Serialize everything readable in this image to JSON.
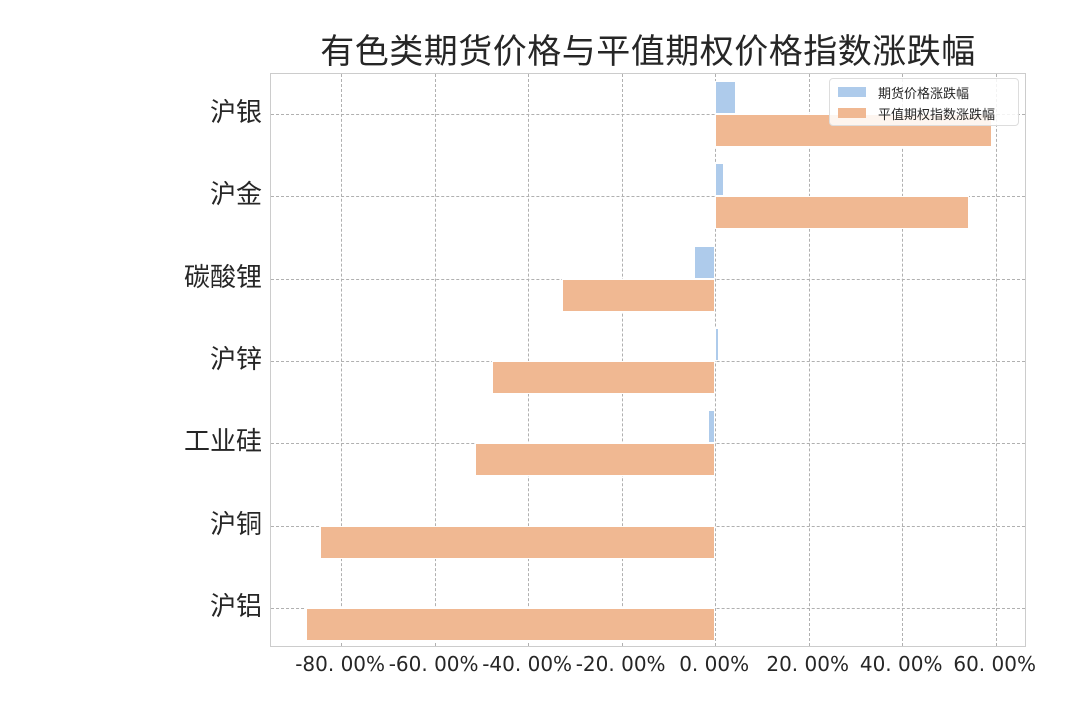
{
  "chart_data": {
    "type": "bar",
    "orientation": "horizontal",
    "title": "有色类期货价格与平值期权价格指数涨跌幅",
    "xlabel": "",
    "ylabel": "",
    "categories": [
      "沪银",
      "沪金",
      "碳酸锂",
      "沪锌",
      "工业硅",
      "沪铜",
      "沪铝"
    ],
    "series": [
      {
        "name": "期货价格涨跌幅",
        "color": "#aecbeb",
        "values": [
          4.5,
          1.9,
          -4.5,
          0.9,
          -1.5,
          -0.5,
          -0.4
        ]
      },
      {
        "name": "平值期权指数涨跌幅",
        "color": "#f0b892",
        "values": [
          59.2,
          54.3,
          -32.7,
          -47.7,
          -51.3,
          -84.5,
          -87.5
        ]
      }
    ],
    "xlim": [
      -95,
      66.7
    ],
    "xticks": [
      -80,
      -60,
      -40,
      -20,
      0,
      20,
      40,
      60
    ],
    "xtick_labels": [
      "-80.00%",
      "-60.00%",
      "-40.00%",
      "-20.00%",
      "0.00%",
      "20.00%",
      "40.00%",
      "60.00%"
    ],
    "grid": true,
    "legend_position": "upper right",
    "unit": "%"
  },
  "title": "有色类期货价格与平值期权价格指数涨跌幅",
  "legend": {
    "items": [
      {
        "label": "期货价格涨跌幅",
        "color": "#aecbeb"
      },
      {
        "label": "平值期权指数涨跌幅",
        "color": "#f0b892"
      }
    ]
  }
}
